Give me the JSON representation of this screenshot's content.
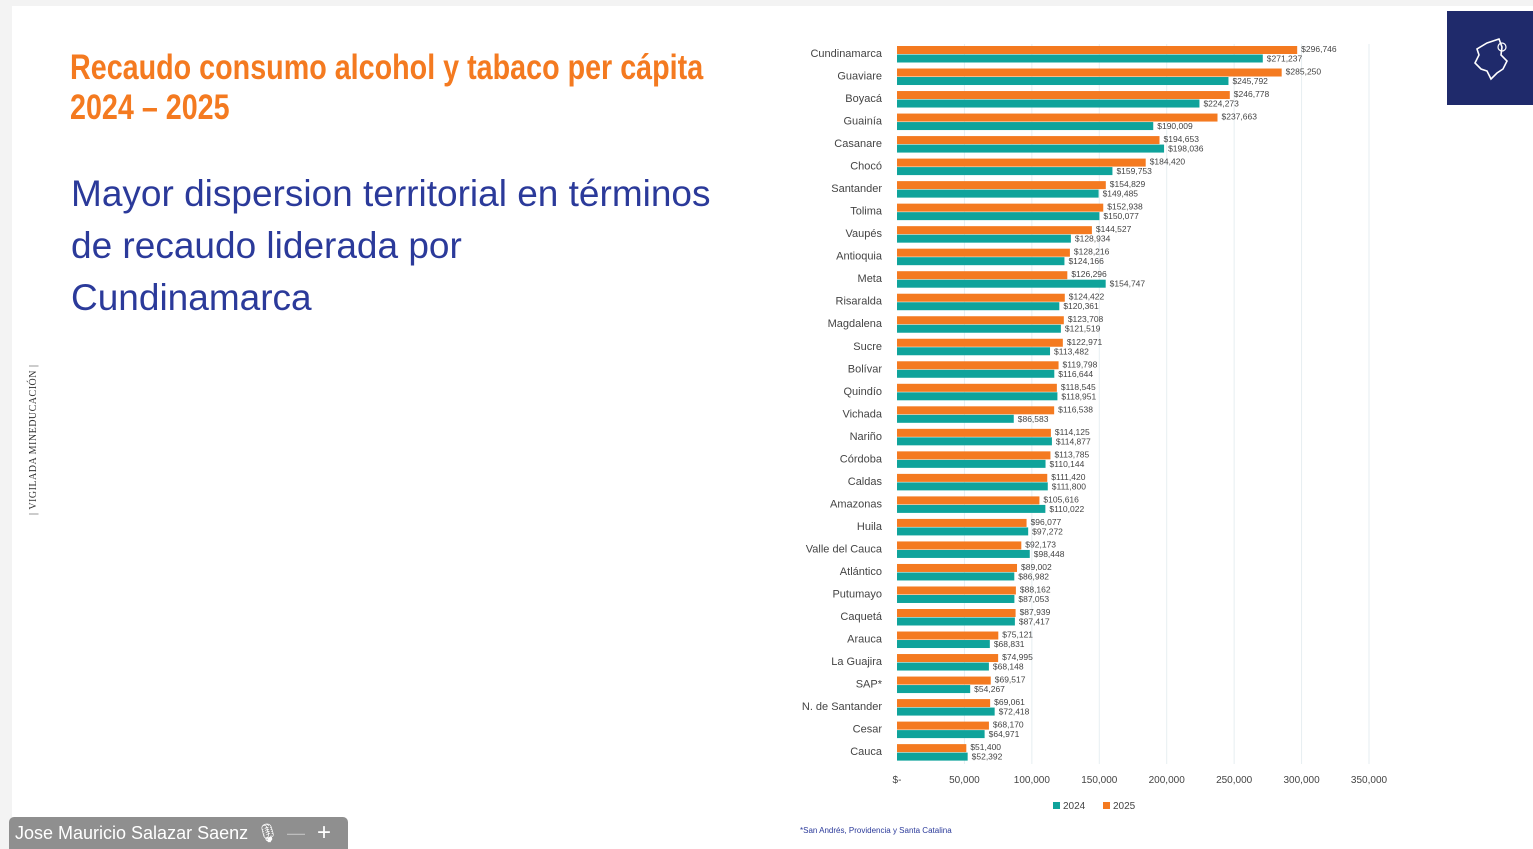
{
  "slide": {
    "title_line1": "Recaudo consumo alcohol y tabaco per cápita",
    "title_line2": "2024 – 2025",
    "subtitle": "Mayor dispersion territorial en términos de recaudo liderada por Cundinamarca",
    "vigilada": "| VIGILADA MINEDUCACIÓN |",
    "footnote": "*San Andrés, Providencia y Santa Catalina",
    "logo_icon": "colombia-map-icon"
  },
  "caller": {
    "name": "Jose Mauricio Salazar Saenz",
    "icons": [
      "microphone-icon",
      "minimize-icon",
      "plus-icon"
    ]
  },
  "chart_data": {
    "type": "bar",
    "orientation": "horizontal",
    "categories": [
      "Cundinamarca",
      "Guaviare",
      "Boyacá",
      "Guainía",
      "Casanare",
      "Chocó",
      "Santander",
      "Tolima",
      "Vaupés",
      "Antioquia",
      "Meta",
      "Risaralda",
      "Magdalena",
      "Sucre",
      "Bolívar",
      "Quindío",
      "Vichada",
      "Nariño",
      "Córdoba",
      "Caldas",
      "Amazonas",
      "Huila",
      "Valle del Cauca",
      "Atlántico",
      "Putumayo",
      "Caquetá",
      "Arauca",
      "La Guajira",
      "SAP*",
      "N. de Santander",
      "Cesar",
      "Cauca"
    ],
    "series": [
      {
        "name": "2024",
        "color": "#0fa39b",
        "values": [
          271237,
          245792,
          224273,
          190009,
          198036,
          159753,
          149485,
          150077,
          128934,
          124166,
          154747,
          120361,
          121519,
          113482,
          116644,
          118951,
          86583,
          114877,
          110144,
          111800,
          110022,
          97272,
          98448,
          86982,
          87053,
          87417,
          68831,
          68148,
          54267,
          72418,
          64971,
          52392
        ]
      },
      {
        "name": "2025",
        "color": "#f47a20",
        "values": [
          296746,
          285250,
          246778,
          237663,
          194653,
          184420,
          154829,
          152938,
          144527,
          128216,
          126296,
          124422,
          123708,
          122971,
          119798,
          118545,
          116538,
          114125,
          113785,
          111420,
          105616,
          96077,
          92173,
          89002,
          88162,
          87939,
          75121,
          74995,
          69517,
          69061,
          68170,
          51400
        ]
      }
    ],
    "xlim": [
      0,
      350000
    ],
    "xticks": [
      0,
      50000,
      100000,
      150000,
      200000,
      250000,
      300000,
      350000
    ],
    "xtick_labels": [
      "$-",
      "50,000",
      "100,000",
      "150,000",
      "200,000",
      "250,000",
      "300,000",
      "350,000"
    ],
    "value_prefix": "$",
    "grid": true,
    "legend": "bottom",
    "data_labels": true
  }
}
